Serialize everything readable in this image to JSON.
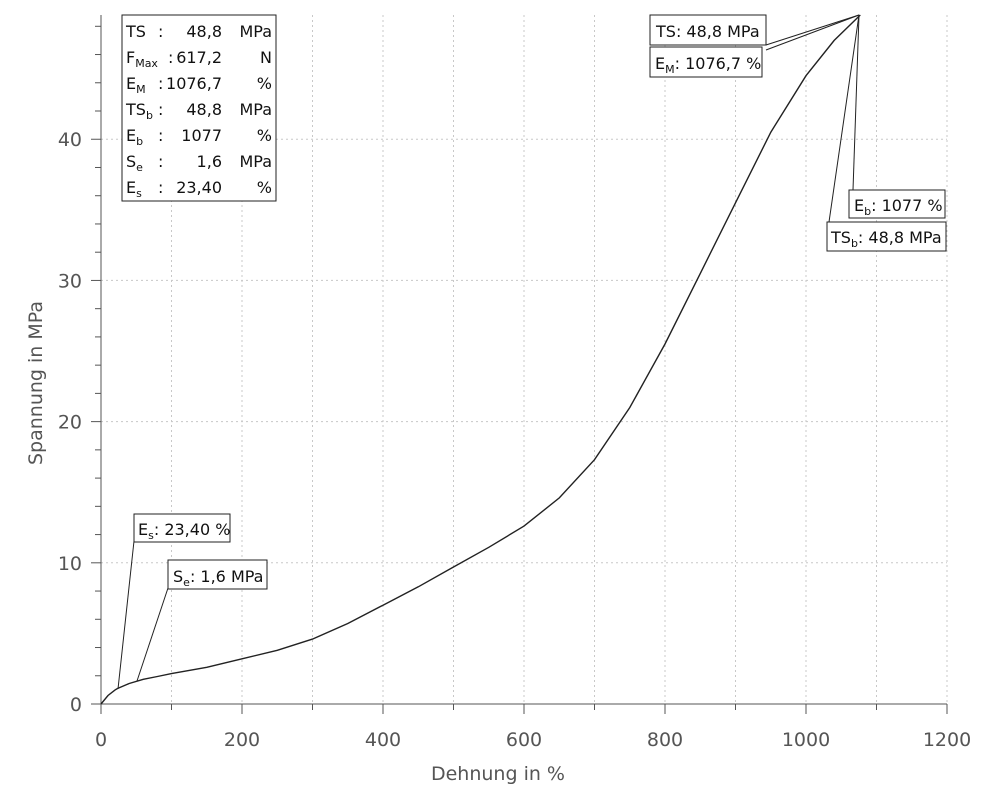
{
  "chart_data": {
    "type": "line",
    "xlabel": "Dehnung in %",
    "ylabel": "Spannung in MPa",
    "xlim": [
      0,
      1200
    ],
    "ylim": [
      0,
      48.8
    ],
    "xticks": [
      0,
      200,
      400,
      600,
      800,
      1000,
      1200
    ],
    "yticks": [
      0,
      10,
      20,
      30,
      40
    ],
    "grid": true,
    "series": [
      {
        "x": [
          0,
          10,
          20,
          23.4,
          40,
          60,
          80,
          100,
          150,
          200,
          250,
          300,
          350,
          400,
          450,
          500,
          550,
          600,
          650,
          700,
          750,
          800,
          850,
          900,
          950,
          1000,
          1040,
          1077
        ],
        "y": [
          0,
          0.6,
          1.0,
          1.1,
          1.45,
          1.75,
          1.95,
          2.15,
          2.6,
          3.2,
          3.8,
          4.6,
          5.7,
          7.0,
          8.3,
          9.7,
          11.1,
          12.6,
          14.6,
          17.3,
          21.0,
          25.5,
          30.5,
          35.5,
          40.5,
          44.5,
          47.0,
          48.8
        ]
      }
    ],
    "stats": [
      {
        "symbol": "TS",
        "sub": "",
        "value": "48,8",
        "unit": "MPa"
      },
      {
        "symbol": "F",
        "sub": "Max",
        "value": "617,2",
        "unit": "N"
      },
      {
        "symbol": "E",
        "sub": "M",
        "value": "1076,7",
        "unit": "%"
      },
      {
        "symbol": "TS",
        "sub": "b",
        "value": "48,8",
        "unit": "MPa"
      },
      {
        "symbol": "E",
        "sub": "b",
        "value": "1077",
        "unit": "%"
      },
      {
        "symbol": "S",
        "sub": "e",
        "value": "1,6",
        "unit": "MPa"
      },
      {
        "symbol": "E",
        "sub": "s",
        "value": "23,40",
        "unit": "%"
      }
    ],
    "annotations": [
      {
        "symbol": "TS",
        "sub": "",
        "text": ": 48,8 MPa",
        "point": [
          1077,
          48.8
        ]
      },
      {
        "symbol": "E",
        "sub": "M",
        "text": ": 1076,7 %",
        "point": [
          1077,
          48.8
        ]
      },
      {
        "symbol": "E",
        "sub": "b",
        "text": ": 1077 %",
        "point": [
          1077,
          48.8
        ]
      },
      {
        "symbol": "TS",
        "sub": "b",
        "text": ": 48,8 MPa",
        "point": [
          1077,
          48.8
        ]
      },
      {
        "symbol": "E",
        "sub": "s",
        "text": ": 23,40 %",
        "point": [
          23.4,
          1.1
        ]
      },
      {
        "symbol": "S",
        "sub": "e",
        "text": ": 1,6 MPa",
        "point": [
          50,
          1.6
        ]
      }
    ]
  }
}
